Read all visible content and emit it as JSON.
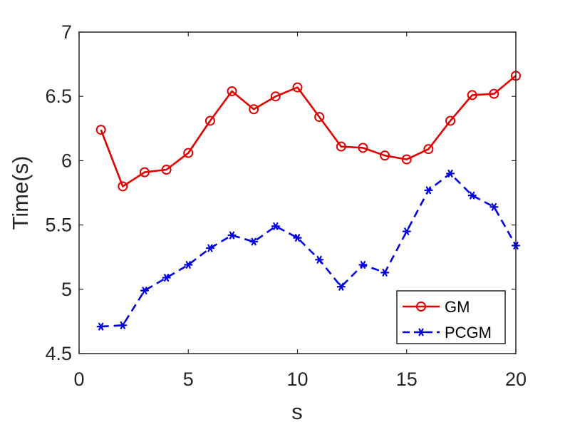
{
  "chart_data": {
    "type": "line",
    "title": "",
    "xlabel": "s",
    "ylabel": "Time(s)",
    "xlim": [
      0,
      20
    ],
    "ylim": [
      4.5,
      7
    ],
    "xticks": [
      "0",
      "5",
      "10",
      "15",
      "20"
    ],
    "yticks": [
      "4.5",
      "5",
      "5.5",
      "6",
      "6.5",
      "7"
    ],
    "grid": false,
    "legend_position": "bottom-right",
    "x": [
      1,
      2,
      3,
      4,
      5,
      6,
      7,
      8,
      9,
      10,
      11,
      12,
      13,
      14,
      15,
      16,
      17,
      18,
      19,
      20
    ],
    "series": [
      {
        "name": "GM",
        "color": "#e00000",
        "line_style": "solid",
        "marker": "circle",
        "values": [
          6.24,
          5.8,
          5.91,
          5.93,
          6.06,
          6.31,
          6.54,
          6.4,
          6.5,
          6.57,
          6.34,
          6.11,
          6.1,
          6.04,
          6.01,
          6.09,
          6.31,
          6.51,
          6.52,
          6.66
        ]
      },
      {
        "name": "PCGM",
        "color": "#0000e0",
        "line_style": "dashed",
        "marker": "asterisk",
        "values": [
          4.71,
          4.72,
          4.99,
          5.09,
          5.19,
          5.32,
          5.42,
          5.37,
          5.49,
          5.4,
          5.23,
          5.02,
          5.19,
          5.13,
          5.45,
          5.77,
          5.9,
          5.73,
          5.64,
          5.34
        ]
      }
    ]
  }
}
